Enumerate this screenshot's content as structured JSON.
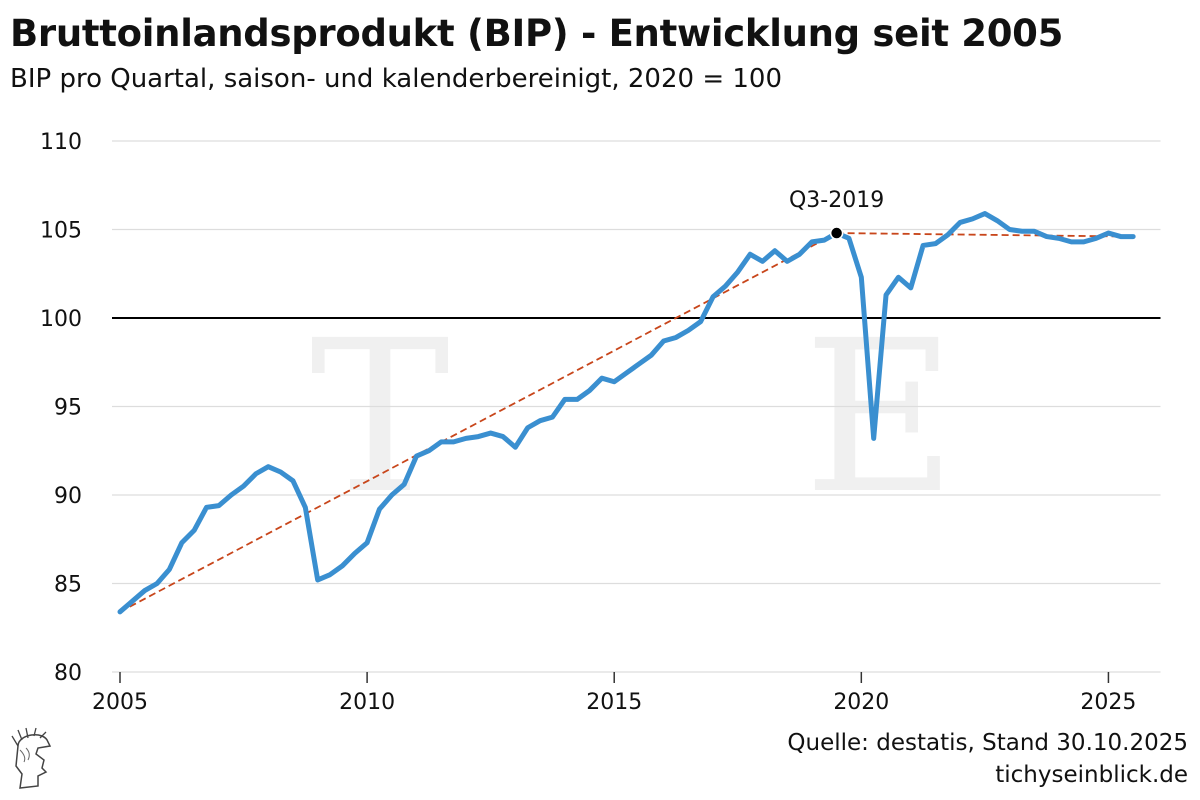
{
  "title": "Bruttoinlandsprodukt (BIP) - Entwicklung seit 2005",
  "subtitle": "BIP pro Quartal, saison- und kalenderbereinigt, 2020 = 100",
  "source": "Quelle: destatis, Stand 30.10.2025",
  "site": "tichyseinblick.de",
  "watermark_letters": [
    "T",
    "E"
  ],
  "colors": {
    "series": "#3a8fd0",
    "trend": "#c8461b",
    "grid": "#dddddd",
    "baseline": "#000000",
    "watermark": "#f0f0f0"
  },
  "chart_data": {
    "type": "line",
    "title": "Bruttoinlandsprodukt (BIP) - Entwicklung seit 2005",
    "subtitle": "BIP pro Quartal, saison- und kalenderbereinigt, 2020 = 100",
    "xlabel": "",
    "ylabel": "",
    "xlim": [
      2005,
      2025.75
    ],
    "ylim": [
      80,
      110
    ],
    "x_ticks": [
      2005,
      2010,
      2015,
      2020,
      2025
    ],
    "y_ticks": [
      80,
      85,
      90,
      95,
      100,
      105,
      110
    ],
    "grid": "horizontal",
    "reference_line": 100,
    "series": [
      {
        "name": "",
        "x": [
          2005.0,
          2005.25,
          2005.5,
          2005.75,
          2006.0,
          2006.25,
          2006.5,
          2006.75,
          2007.0,
          2007.25,
          2007.5,
          2007.75,
          2008.0,
          2008.25,
          2008.5,
          2008.75,
          2009.0,
          2009.25,
          2009.5,
          2009.75,
          2010.0,
          2010.25,
          2010.5,
          2010.75,
          2011.0,
          2011.25,
          2011.5,
          2011.75,
          2012.0,
          2012.25,
          2012.5,
          2012.75,
          2013.0,
          2013.25,
          2013.5,
          2013.75,
          2014.0,
          2014.25,
          2014.5,
          2014.75,
          2015.0,
          2015.25,
          2015.5,
          2015.75,
          2016.0,
          2016.25,
          2016.5,
          2016.75,
          2017.0,
          2017.25,
          2017.5,
          2017.75,
          2018.0,
          2018.25,
          2018.5,
          2018.75,
          2019.0,
          2019.25,
          2019.5,
          2019.75,
          2020.0,
          2020.25,
          2020.5,
          2020.75,
          2021.0,
          2021.25,
          2021.5,
          2021.75,
          2022.0,
          2022.25,
          2022.5,
          2022.75,
          2023.0,
          2023.25,
          2023.5,
          2023.75,
          2024.0,
          2024.25,
          2024.5,
          2024.75,
          2025.0,
          2025.25,
          2025.5
        ],
        "y": [
          83.4,
          84.0,
          84.6,
          85.0,
          85.8,
          87.3,
          88.0,
          89.3,
          89.4,
          90.0,
          90.5,
          91.2,
          91.6,
          91.3,
          90.8,
          89.3,
          85.2,
          85.5,
          86.0,
          86.7,
          87.3,
          89.2,
          90.0,
          90.6,
          92.2,
          92.5,
          93.0,
          93.0,
          93.2,
          93.3,
          93.5,
          93.3,
          92.7,
          93.8,
          94.2,
          94.4,
          95.4,
          95.4,
          95.9,
          96.6,
          96.4,
          96.9,
          97.4,
          97.9,
          98.7,
          98.9,
          99.3,
          99.8,
          101.2,
          101.8,
          102.6,
          103.6,
          103.2,
          103.8,
          103.2,
          103.6,
          104.3,
          104.4,
          104.8,
          104.5,
          102.3,
          93.2,
          101.3,
          102.3,
          101.7,
          104.1,
          104.2,
          104.7,
          105.4,
          105.6,
          105.9,
          105.5,
          105.0,
          104.9,
          104.9,
          104.6,
          104.5,
          104.3,
          104.3,
          104.5,
          104.8,
          104.6,
          104.6
        ]
      }
    ],
    "trend_lines": [
      {
        "x": [
          2005.0,
          2019.5
        ],
        "y": [
          83.4,
          104.8
        ],
        "style": "dashed"
      },
      {
        "x": [
          2019.5,
          2025.5
        ],
        "y": [
          104.8,
          104.6
        ],
        "style": "dashed"
      }
    ],
    "annotations": [
      {
        "label": "Q3-2019",
        "x": 2019.5,
        "y": 104.8
      }
    ]
  }
}
